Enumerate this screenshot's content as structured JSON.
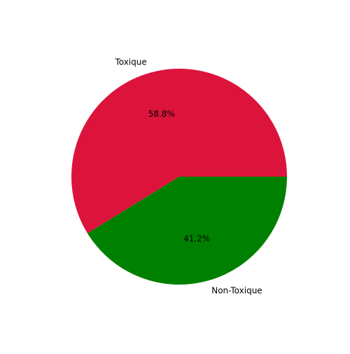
{
  "chart_data": {
    "type": "pie",
    "title": "",
    "start_angle_deg": 0,
    "direction": "counterclockwise",
    "slices": [
      {
        "label": "Toxique",
        "value": 58.8,
        "pct_label": "58.8%",
        "color": "#dc143c"
      },
      {
        "label": "Non-Toxique",
        "value": 41.2,
        "pct_label": "41.2%",
        "color": "#008000"
      }
    ]
  }
}
